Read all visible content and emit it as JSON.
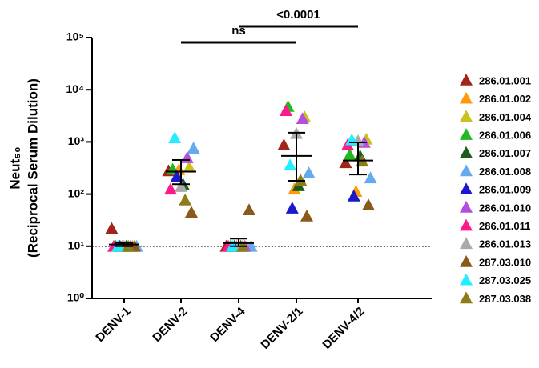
{
  "chart_data": {
    "type": "scatter",
    "ylabel": "Neut₅₀",
    "ylabel2": "(Reciprocal Serum Dilution)",
    "categories": [
      "DENV-1",
      "DENV-2",
      "DENV-4",
      "DENV-2/1",
      "DENV-4/2"
    ],
    "log_y": true,
    "ylim": [
      1,
      100000
    ],
    "yticks": [
      {
        "value": 1,
        "label": "10⁰"
      },
      {
        "value": 10,
        "label": "10¹"
      },
      {
        "value": 100,
        "label": "10²"
      },
      {
        "value": 1000,
        "label": "10³"
      },
      {
        "value": 10000,
        "label": "10⁴"
      },
      {
        "value": 100000,
        "label": "10⁵"
      }
    ],
    "reference_line": 10,
    "legend": "right",
    "series": [
      {
        "name": "286.01.001",
        "color": "#a3241b",
        "values": [
          22,
          280,
          10,
          880,
          400
        ]
      },
      {
        "name": "286.01.002",
        "color": "#ff9a0a",
        "values": [
          10,
          295,
          10,
          125,
          113
        ]
      },
      {
        "name": "286.01.004",
        "color": "#c9c21c",
        "values": [
          10,
          330,
          10,
          3000,
          1130
        ]
      },
      {
        "name": "286.01.006",
        "color": "#22b822",
        "values": [
          10,
          300,
          10,
          4800,
          575
        ]
      },
      {
        "name": "286.01.007",
        "color": "#1e5c1e",
        "values": [
          10,
          155,
          10,
          145,
          540
        ]
      },
      {
        "name": "286.01.008",
        "color": "#66aaee",
        "values": [
          10,
          760,
          10,
          255,
          205
        ]
      },
      {
        "name": "286.01.009",
        "color": "#1a1acc",
        "values": [
          10,
          220,
          10,
          54,
          92
        ]
      },
      {
        "name": "286.01.010",
        "color": "#b44de0",
        "values": [
          10,
          500,
          10,
          2800,
          980
        ]
      },
      {
        "name": "286.01.011",
        "color": "#ff1a8c",
        "values": [
          10,
          125,
          10,
          4000,
          880
        ]
      },
      {
        "name": "286.01.013",
        "color": "#aaaaaa",
        "values": [
          10,
          140,
          10,
          1450,
          1050
        ]
      },
      {
        "name": "287.03.010",
        "color": "#8b5a1a",
        "values": [
          10,
          45,
          50,
          38,
          62
        ]
      },
      {
        "name": "287.03.025",
        "color": "#22eeff",
        "values": [
          10,
          1200,
          10,
          360,
          1100
        ]
      },
      {
        "name": "287.03.038",
        "color": "#8b7d1a",
        "values": [
          10,
          77,
          10,
          185,
          430
        ]
      }
    ],
    "mean": [
      10.8,
      270,
      11.5,
      540,
      440
    ],
    "error_lower": [
      10,
      155,
      10,
      180,
      237
    ],
    "error_upper": [
      11.6,
      450,
      14,
      1500,
      980
    ],
    "annotations": [
      {
        "label": "ns",
        "from": "DENV-2",
        "to": "DENV-2/1"
      },
      {
        "label": "<0.0001",
        "from": "DENV-4",
        "to": "DENV-4/2"
      }
    ]
  }
}
